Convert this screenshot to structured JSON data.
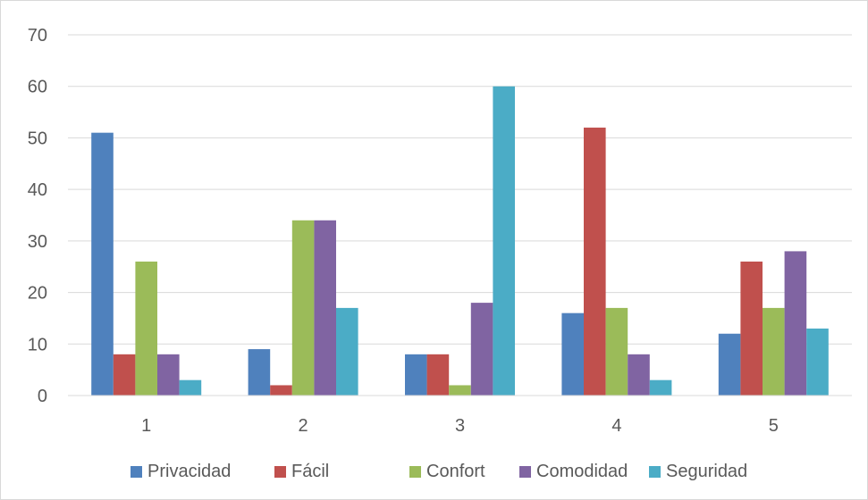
{
  "chart_data": {
    "type": "bar",
    "categories": [
      "1",
      "2",
      "3",
      "4",
      "5"
    ],
    "series": [
      {
        "name": "Privacidad",
        "values": [
          51,
          9,
          8,
          16,
          12
        ],
        "color": "#4f81bd"
      },
      {
        "name": "Fácil",
        "values": [
          8,
          2,
          8,
          52,
          26
        ],
        "color": "#c0504d"
      },
      {
        "name": "Confort",
        "values": [
          26,
          34,
          2,
          17,
          17
        ],
        "color": "#9bbb59"
      },
      {
        "name": "Comodidad",
        "values": [
          8,
          34,
          18,
          8,
          28
        ],
        "color": "#8064a2"
      },
      {
        "name": "Seguridad",
        "values": [
          3,
          17,
          60,
          3,
          13
        ],
        "color": "#4bacc6"
      }
    ],
    "yticks": [
      "0",
      "10",
      "20",
      "30",
      "40",
      "50",
      "60",
      "70"
    ],
    "ylim": [
      0,
      70
    ],
    "grid": true,
    "legend": "bottom",
    "title": "",
    "xlabel": "",
    "ylabel": ""
  }
}
